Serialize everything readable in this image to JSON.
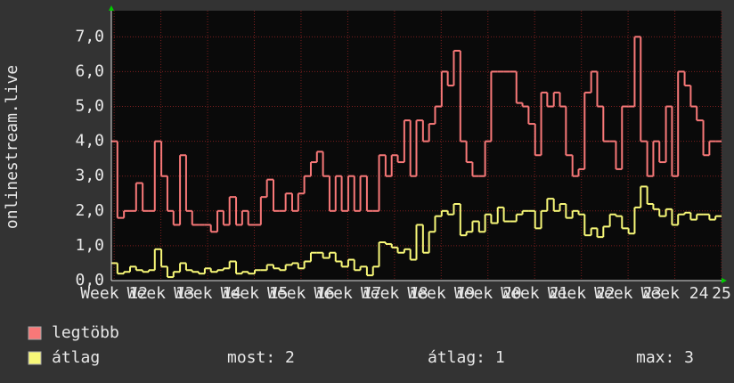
{
  "chart_data": {
    "type": "step",
    "ylabel": "onlinestream.live",
    "x": [
      11.94,
      12.07,
      12.21,
      12.34,
      12.47,
      12.61,
      12.74,
      12.87,
      13.01,
      13.14,
      13.27,
      13.41,
      13.54,
      13.67,
      13.81,
      13.94,
      14.07,
      14.21,
      14.34,
      14.47,
      14.61,
      14.74,
      14.87,
      15.01,
      15.14,
      15.27,
      15.41,
      15.54,
      15.67,
      15.81,
      15.94,
      16.07,
      16.21,
      16.34,
      16.47,
      16.61,
      16.74,
      16.87,
      17.01,
      17.14,
      17.27,
      17.41,
      17.54,
      17.67,
      17.81,
      17.94,
      18.07,
      18.21,
      18.34,
      18.47,
      18.61,
      18.74,
      18.87,
      19.01,
      19.14,
      19.27,
      19.41,
      19.54,
      19.67,
      19.81,
      19.94,
      20.07,
      20.21,
      20.34,
      20.47,
      20.61,
      20.74,
      20.87,
      21.01,
      21.14,
      21.27,
      21.41,
      21.54,
      21.67,
      21.81,
      21.94,
      22.07,
      22.21,
      22.34,
      22.47,
      22.61,
      22.74,
      22.87,
      23.01,
      23.14,
      23.27,
      23.41,
      23.54,
      23.67,
      23.81,
      23.94,
      24.07,
      24.21,
      24.34,
      24.47,
      24.61,
      24.74,
      24.87
    ],
    "series": [
      {
        "name": "legtöbb",
        "color": "#f87878",
        "values": [
          4.0,
          1.8,
          2.0,
          2.0,
          2.8,
          2.0,
          2.0,
          4.0,
          3.0,
          2.0,
          1.6,
          3.6,
          2.0,
          1.6,
          1.6,
          1.6,
          1.4,
          2.0,
          1.6,
          2.4,
          1.6,
          2.0,
          1.6,
          1.6,
          2.4,
          2.9,
          2.0,
          2.0,
          2.5,
          2.0,
          2.5,
          3.0,
          3.4,
          3.7,
          3.0,
          2.0,
          3.0,
          2.0,
          3.0,
          2.0,
          3.0,
          2.0,
          2.0,
          3.6,
          3.0,
          3.6,
          3.4,
          4.6,
          3.0,
          4.6,
          4.0,
          4.5,
          5.0,
          6.0,
          5.6,
          6.6,
          4.0,
          3.4,
          3.0,
          3.0,
          4.0,
          6.0,
          6.0,
          6.0,
          6.0,
          5.1,
          5.0,
          4.5,
          3.6,
          5.4,
          5.0,
          5.4,
          5.0,
          3.6,
          3.0,
          3.2,
          5.4,
          6.0,
          5.0,
          4.0,
          4.0,
          3.2,
          5.0,
          5.0,
          7.0,
          4.0,
          3.0,
          4.0,
          3.4,
          5.0,
          3.0,
          6.0,
          5.6,
          5.0,
          4.6,
          3.6,
          4.0,
          4.0
        ]
      },
      {
        "name": "átlag",
        "color": "#f8f878",
        "values": [
          0.5,
          0.2,
          0.25,
          0.4,
          0.3,
          0.25,
          0.3,
          0.9,
          0.4,
          0.1,
          0.25,
          0.5,
          0.3,
          0.25,
          0.2,
          0.35,
          0.25,
          0.3,
          0.35,
          0.55,
          0.2,
          0.25,
          0.2,
          0.3,
          0.3,
          0.45,
          0.35,
          0.3,
          0.45,
          0.5,
          0.35,
          0.55,
          0.8,
          0.8,
          0.65,
          0.8,
          0.55,
          0.4,
          0.6,
          0.3,
          0.4,
          0.15,
          0.4,
          1.1,
          1.05,
          0.95,
          0.8,
          0.9,
          0.6,
          1.6,
          0.8,
          1.4,
          1.85,
          2.0,
          1.9,
          2.2,
          1.3,
          1.4,
          1.7,
          1.4,
          1.9,
          1.65,
          2.1,
          1.7,
          1.7,
          1.9,
          2.0,
          2.0,
          1.5,
          2.0,
          2.35,
          2.0,
          2.2,
          1.8,
          2.0,
          1.9,
          1.3,
          1.5,
          1.25,
          1.55,
          1.9,
          1.85,
          1.5,
          1.35,
          2.1,
          2.7,
          2.2,
          2.05,
          1.85,
          2.05,
          1.6,
          1.9,
          1.95,
          1.75,
          1.9,
          1.9,
          1.75,
          1.85
        ]
      }
    ],
    "stats": [
      "most: 2",
      "átlag: 1",
      "max: 3"
    ],
    "xlim": [
      11.94,
      25.0
    ],
    "xticks": [
      {
        "value": 12,
        "label": "Week 12"
      },
      {
        "value": 13,
        "label": "Week 13"
      },
      {
        "value": 14,
        "label": "Week 14"
      },
      {
        "value": 15,
        "label": "Week 15"
      },
      {
        "value": 16,
        "label": "Week 16"
      },
      {
        "value": 17,
        "label": "Week 17"
      },
      {
        "value": 18,
        "label": "Week 18"
      },
      {
        "value": 19,
        "label": "Week 19"
      },
      {
        "value": 20,
        "label": "Week 20"
      },
      {
        "value": 21,
        "label": "Week 21"
      },
      {
        "value": 22,
        "label": "Week 22"
      },
      {
        "value": 23,
        "label": "Week 23"
      },
      {
        "value": 24,
        "label": "Week 24"
      },
      {
        "value": 25,
        "label": "25"
      }
    ],
    "ylim": [
      0,
      7.75
    ],
    "yticks": [
      {
        "value": 0,
        "label": "0,0"
      },
      {
        "value": 1,
        "label": "1,0"
      },
      {
        "value": 2,
        "label": "2,0"
      },
      {
        "value": 3,
        "label": "3,0"
      },
      {
        "value": 4,
        "label": "4,0"
      },
      {
        "value": 5,
        "label": "5,0"
      },
      {
        "value": 6,
        "label": "6,0"
      },
      {
        "value": 7,
        "label": "7,0"
      }
    ],
    "grid": true
  }
}
